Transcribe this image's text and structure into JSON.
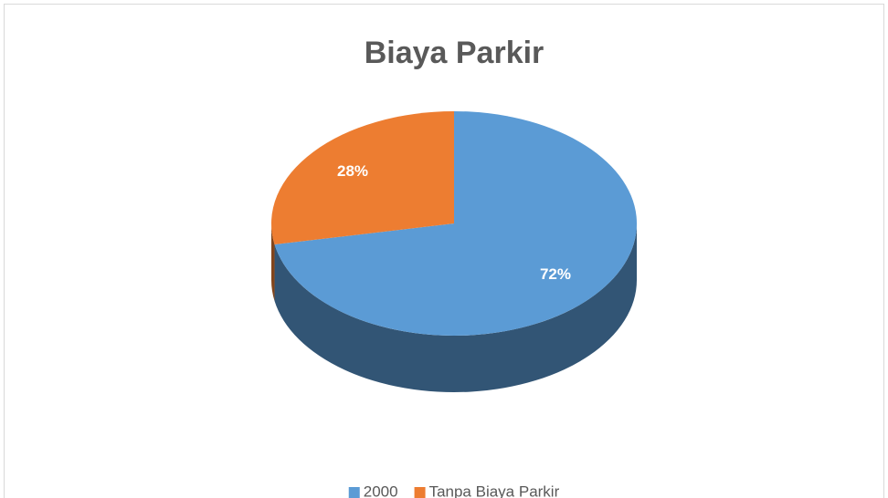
{
  "chart_data": {
    "type": "pie",
    "title": "Biaya Parkir",
    "categories": [
      "2000",
      "Tanpa Biaya Parkir"
    ],
    "values": [
      72,
      28
    ],
    "value_labels": [
      "72%",
      "28%"
    ],
    "colors": [
      "#5b9bd5",
      "#ed7d31"
    ],
    "legend": "bottom"
  }
}
